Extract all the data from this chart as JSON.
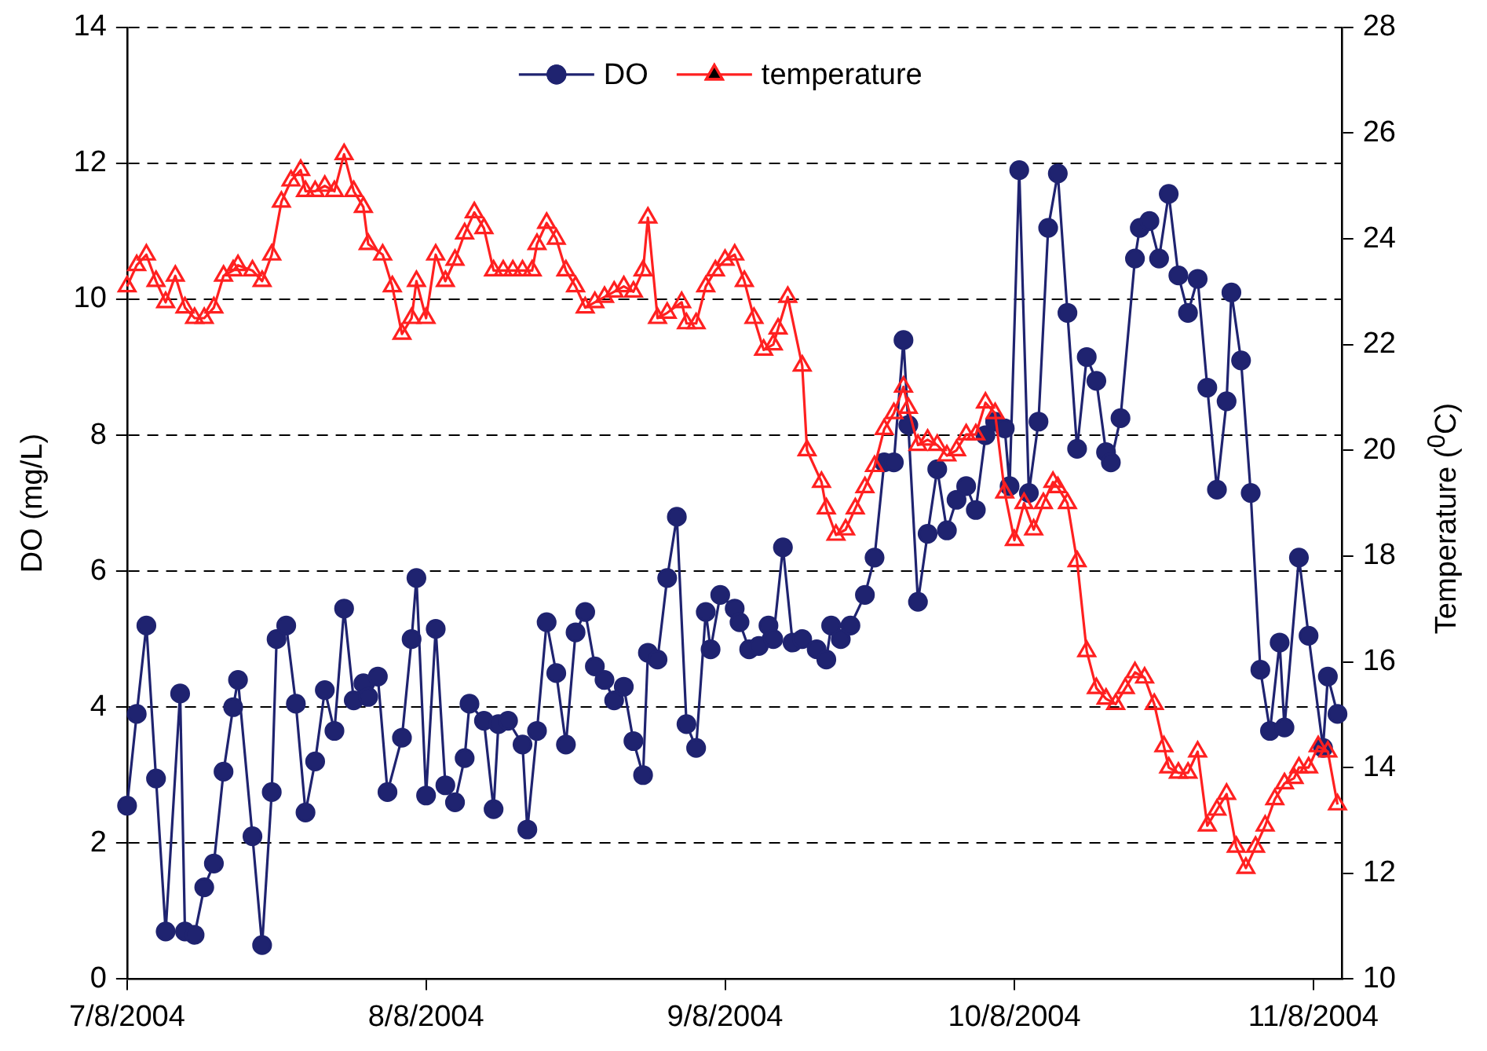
{
  "chart_data": {
    "type": "line",
    "ylabel": "DO (mg/L)",
    "y2label": "Temperature ($^{0}$C)",
    "xlim": [
      "2004-07-08",
      "2004-11-11"
    ],
    "xticks": [
      {
        "value": "2004-07-08",
        "label": "7/8/2004"
      },
      {
        "value": "2004-08-08",
        "label": "8/8/2004"
      },
      {
        "value": "2004-09-08",
        "label": "9/8/2004"
      },
      {
        "value": "2004-10-08",
        "label": "10/8/2004"
      },
      {
        "value": "2004-11-08",
        "label": "11/8/2004"
      }
    ],
    "ylim": [
      0,
      14
    ],
    "yticks": [
      0,
      2,
      4,
      6,
      8,
      10,
      12,
      14
    ],
    "y2lim": [
      10,
      28
    ],
    "y2ticks": [
      10,
      12,
      14,
      16,
      18,
      20,
      22,
      24,
      26,
      28
    ],
    "grid": "y",
    "legend": "top",
    "line_style": "solid",
    "series": [
      {
        "name": "DO",
        "color": "#1f2370",
        "marker": "circle",
        "axis": "y",
        "x": [
          "2004-07-08",
          "2004-07-09",
          "2004-07-10",
          "2004-07-11",
          "2004-07-12",
          "2004-07-13T12:00",
          "2004-07-14",
          "2004-07-15",
          "2004-07-16",
          "2004-07-17",
          "2004-07-18",
          "2004-07-19",
          "2004-07-19T12:00",
          "2004-07-21",
          "2004-07-22",
          "2004-07-23",
          "2004-07-23T12:00",
          "2004-07-24T12:00",
          "2004-07-25T12:00",
          "2004-07-26T12:00",
          "2004-07-27T12:00",
          "2004-07-28T12:00",
          "2004-07-29T12:00",
          "2004-07-30T12:00",
          "2004-07-31T12:00",
          "2004-08-01T12:00",
          "2004-08-02",
          "2004-08-03",
          "2004-08-04",
          "2004-08-05T12:00",
          "2004-08-06T12:00",
          "2004-08-07",
          "2004-08-08",
          "2004-08-09",
          "2004-08-10",
          "2004-08-11",
          "2004-08-12",
          "2004-08-12T12:00",
          "2004-08-14",
          "2004-08-15",
          "2004-08-15T12:00",
          "2004-08-16T12:00",
          "2004-08-18",
          "2004-08-18T12:00",
          "2004-08-19T12:00",
          "2004-08-20T12:00",
          "2004-08-21T12:00",
          "2004-08-22T12:00",
          "2004-08-23T12:00",
          "2004-08-24T12:00",
          "2004-08-25T12:00",
          "2004-08-26T12:00",
          "2004-08-27T12:00",
          "2004-08-28T12:00",
          "2004-08-29T12:00",
          "2004-08-30T12:00",
          "2004-08-31",
          "2004-09-01",
          "2004-09-02",
          "2004-09-03",
          "2004-09-04",
          "2004-09-05",
          "2004-09-06",
          "2004-09-06T12:00",
          "2004-09-07T12:00",
          "2004-09-09",
          "2004-09-09T12:00",
          "2004-09-10T12:00",
          "2004-09-11T12:00",
          "2004-09-12T12:00",
          "2004-09-13",
          "2004-09-14",
          "2004-09-15",
          "2004-09-16",
          "2004-09-17T12:00",
          "2004-09-18T12:00",
          "2004-09-19",
          "2004-09-20",
          "2004-09-21",
          "2004-09-22T12:00",
          "2004-09-23T12:00",
          "2004-09-24T12:00",
          "2004-09-25T12:00",
          "2004-09-26T12:00",
          "2004-09-27",
          "2004-09-28",
          "2004-09-29",
          "2004-09-30",
          "2004-10-01",
          "2004-10-02",
          "2004-10-03",
          "2004-10-04",
          "2004-10-05",
          "2004-10-06",
          "2004-10-07",
          "2004-10-07T12:00",
          "2004-10-08T12:00",
          "2004-10-09T12:00",
          "2004-10-10T12:00",
          "2004-10-11T12:00",
          "2004-10-12T12:00",
          "2004-10-13T12:00",
          "2004-10-14T12:00",
          "2004-10-15T12:00",
          "2004-10-16T12:00",
          "2004-10-17T12:00",
          "2004-10-18",
          "2004-10-19",
          "2004-10-20T12:00",
          "2004-10-21",
          "2004-10-22",
          "2004-10-23",
          "2004-10-24",
          "2004-10-25",
          "2004-10-26",
          "2004-10-27",
          "2004-10-28",
          "2004-10-29",
          "2004-10-30",
          "2004-10-30T12:00",
          "2004-10-31T12:00",
          "2004-11-01T12:00",
          "2004-11-02T12:00",
          "2004-11-03T12:00",
          "2004-11-04T12:00",
          "2004-11-05",
          "2004-11-06T12:00",
          "2004-11-07T12:00",
          "2004-11-09",
          "2004-11-09T12:00",
          "2004-11-10T12:00"
        ],
        "values": [
          2.55,
          3.9,
          5.2,
          2.95,
          0.7,
          4.2,
          0.7,
          0.65,
          1.35,
          1.7,
          3.05,
          4.0,
          4.4,
          2.1,
          0.5,
          2.75,
          5.0,
          5.2,
          4.05,
          2.45,
          3.2,
          4.25,
          3.65,
          5.45,
          4.1,
          4.35,
          4.15,
          4.45,
          2.75,
          3.55,
          5.0,
          5.9,
          2.7,
          5.15,
          2.85,
          2.6,
          3.25,
          4.05,
          3.8,
          2.5,
          3.75,
          3.8,
          3.45,
          2.2,
          3.65,
          5.25,
          4.5,
          3.45,
          5.1,
          5.4,
          4.6,
          4.4,
          4.1,
          4.3,
          3.5,
          3.0,
          4.8,
          4.7,
          5.9,
          6.8,
          3.75,
          3.4,
          5.4,
          4.85,
          5.65,
          5.45,
          5.25,
          4.85,
          4.9,
          5.2,
          5.0,
          6.35,
          4.95,
          5.0,
          4.85,
          4.7,
          5.2,
          5.0,
          5.2,
          5.65,
          6.2,
          7.6,
          7.6,
          9.4,
          8.15,
          5.55,
          6.55,
          7.5,
          6.6,
          7.05,
          7.25,
          6.9,
          8.0,
          8.2,
          8.1,
          7.25,
          11.9,
          7.15,
          8.2,
          11.05,
          11.85,
          9.8,
          7.8,
          9.15,
          8.8,
          7.75,
          7.6,
          8.25,
          10.6,
          11.05,
          11.15,
          10.6,
          11.55,
          10.35,
          9.8,
          10.3,
          8.7,
          7.2,
          8.5,
          10.1,
          9.1,
          7.15,
          4.55,
          3.65,
          4.95,
          3.7,
          6.2,
          5.05,
          3.4,
          4.45,
          3.9
        ]
      },
      {
        "name": "temperature",
        "color": "#ff2020",
        "marker": "triangle",
        "axis": "y2",
        "x": [
          "2004-07-08",
          "2004-07-09",
          "2004-07-10",
          "2004-07-11",
          "2004-07-12",
          "2004-07-13",
          "2004-07-14",
          "2004-07-15",
          "2004-07-16",
          "2004-07-17",
          "2004-07-18",
          "2004-07-19",
          "2004-07-19T12:00",
          "2004-07-21",
          "2004-07-22",
          "2004-07-23",
          "2004-07-24",
          "2004-07-25",
          "2004-07-26",
          "2004-07-26T12:00",
          "2004-07-27T12:00",
          "2004-07-28T12:00",
          "2004-07-29T12:00",
          "2004-07-30T12:00",
          "2004-07-31T12:00",
          "2004-08-01T12:00",
          "2004-08-02",
          "2004-08-03T12:00",
          "2004-08-04T12:00",
          "2004-08-05T12:00",
          "2004-08-06T12:00",
          "2004-08-07",
          "2004-08-08",
          "2004-08-09",
          "2004-08-10",
          "2004-08-11",
          "2004-08-12",
          "2004-08-13",
          "2004-08-14",
          "2004-08-15",
          "2004-08-16",
          "2004-08-17",
          "2004-08-18",
          "2004-08-19",
          "2004-08-19T12:00",
          "2004-08-20T12:00",
          "2004-08-21T12:00",
          "2004-08-22T12:00",
          "2004-08-23T12:00",
          "2004-08-24T12:00",
          "2004-08-25T12:00",
          "2004-08-26T12:00",
          "2004-08-27T12:00",
          "2004-08-28T12:00",
          "2004-08-29T12:00",
          "2004-08-30T12:00",
          "2004-08-31",
          "2004-09-01",
          "2004-09-02",
          "2004-09-03T12:00",
          "2004-09-04",
          "2004-09-05",
          "2004-09-06",
          "2004-09-07",
          "2004-09-08",
          "2004-09-09",
          "2004-09-10",
          "2004-09-11",
          "2004-09-12",
          "2004-09-13",
          "2004-09-13T12:00",
          "2004-09-14T12:00",
          "2004-09-16",
          "2004-09-16T12:00",
          "2004-09-18",
          "2004-09-18T12:00",
          "2004-09-19T12:00",
          "2004-09-20T12:00",
          "2004-09-21T12:00",
          "2004-09-22T12:00",
          "2004-09-23T12:00",
          "2004-09-24T12:00",
          "2004-09-25T12:00",
          "2004-09-26T12:00",
          "2004-09-27",
          "2004-09-28",
          "2004-09-29",
          "2004-09-30",
          "2004-10-01",
          "2004-10-02",
          "2004-10-03",
          "2004-10-04",
          "2004-10-05",
          "2004-10-06",
          "2004-10-07",
          "2004-10-08",
          "2004-10-09",
          "2004-10-10",
          "2004-10-11",
          "2004-10-12",
          "2004-10-12T12:00",
          "2004-10-13T12:00",
          "2004-10-14T12:00",
          "2004-10-15T12:00",
          "2004-10-16T12:00",
          "2004-10-17T12:00",
          "2004-10-18T12:00",
          "2004-10-19T12:00",
          "2004-10-20T12:00",
          "2004-10-21T12:00",
          "2004-10-22T12:00",
          "2004-10-23T12:00",
          "2004-10-24",
          "2004-10-25",
          "2004-10-26",
          "2004-10-27",
          "2004-10-28",
          "2004-10-29",
          "2004-10-30",
          "2004-10-31",
          "2004-11-01",
          "2004-11-02",
          "2004-11-03",
          "2004-11-04",
          "2004-11-05",
          "2004-11-06",
          "2004-11-06T12:00",
          "2004-11-07T12:00",
          "2004-11-08T12:00",
          "2004-11-09T12:00",
          "2004-11-10T12:00"
        ],
        "values": [
          23.1,
          23.5,
          23.7,
          23.2,
          22.8,
          23.3,
          22.7,
          22.5,
          22.5,
          22.7,
          23.3,
          23.4,
          23.5,
          23.4,
          23.2,
          23.7,
          24.7,
          25.1,
          25.3,
          24.9,
          24.9,
          25.0,
          24.9,
          25.6,
          24.9,
          24.6,
          23.9,
          23.7,
          23.1,
          22.2,
          22.5,
          23.2,
          22.5,
          23.7,
          23.2,
          23.6,
          24.1,
          24.5,
          24.2,
          23.4,
          23.4,
          23.4,
          23.4,
          23.4,
          23.9,
          24.3,
          24.0,
          23.4,
          23.1,
          22.7,
          22.8,
          22.9,
          23.0,
          23.1,
          23.0,
          23.4,
          24.4,
          22.5,
          22.6,
          22.8,
          22.4,
          22.4,
          23.1,
          23.4,
          23.6,
          23.7,
          23.2,
          22.5,
          21.9,
          22.0,
          22.3,
          22.9,
          21.6,
          20.0,
          19.4,
          18.9,
          18.4,
          18.5,
          18.9,
          19.3,
          19.7,
          20.4,
          20.7,
          21.2,
          20.8,
          20.1,
          20.2,
          20.1,
          19.9,
          20.0,
          20.3,
          20.3,
          20.9,
          20.7,
          19.2,
          18.3,
          19.0,
          18.5,
          19.0,
          19.4,
          19.3,
          19.0,
          17.9,
          16.2,
          15.5,
          15.3,
          15.2,
          15.5,
          15.8,
          15.7,
          15.2,
          14.4,
          14.0,
          13.9,
          13.9,
          14.3,
          12.9,
          13.2,
          13.5,
          12.5,
          12.1,
          12.5,
          12.9,
          13.4,
          13.7,
          13.8,
          14.0,
          14.0,
          14.4,
          14.3,
          13.3
        ]
      }
    ]
  }
}
